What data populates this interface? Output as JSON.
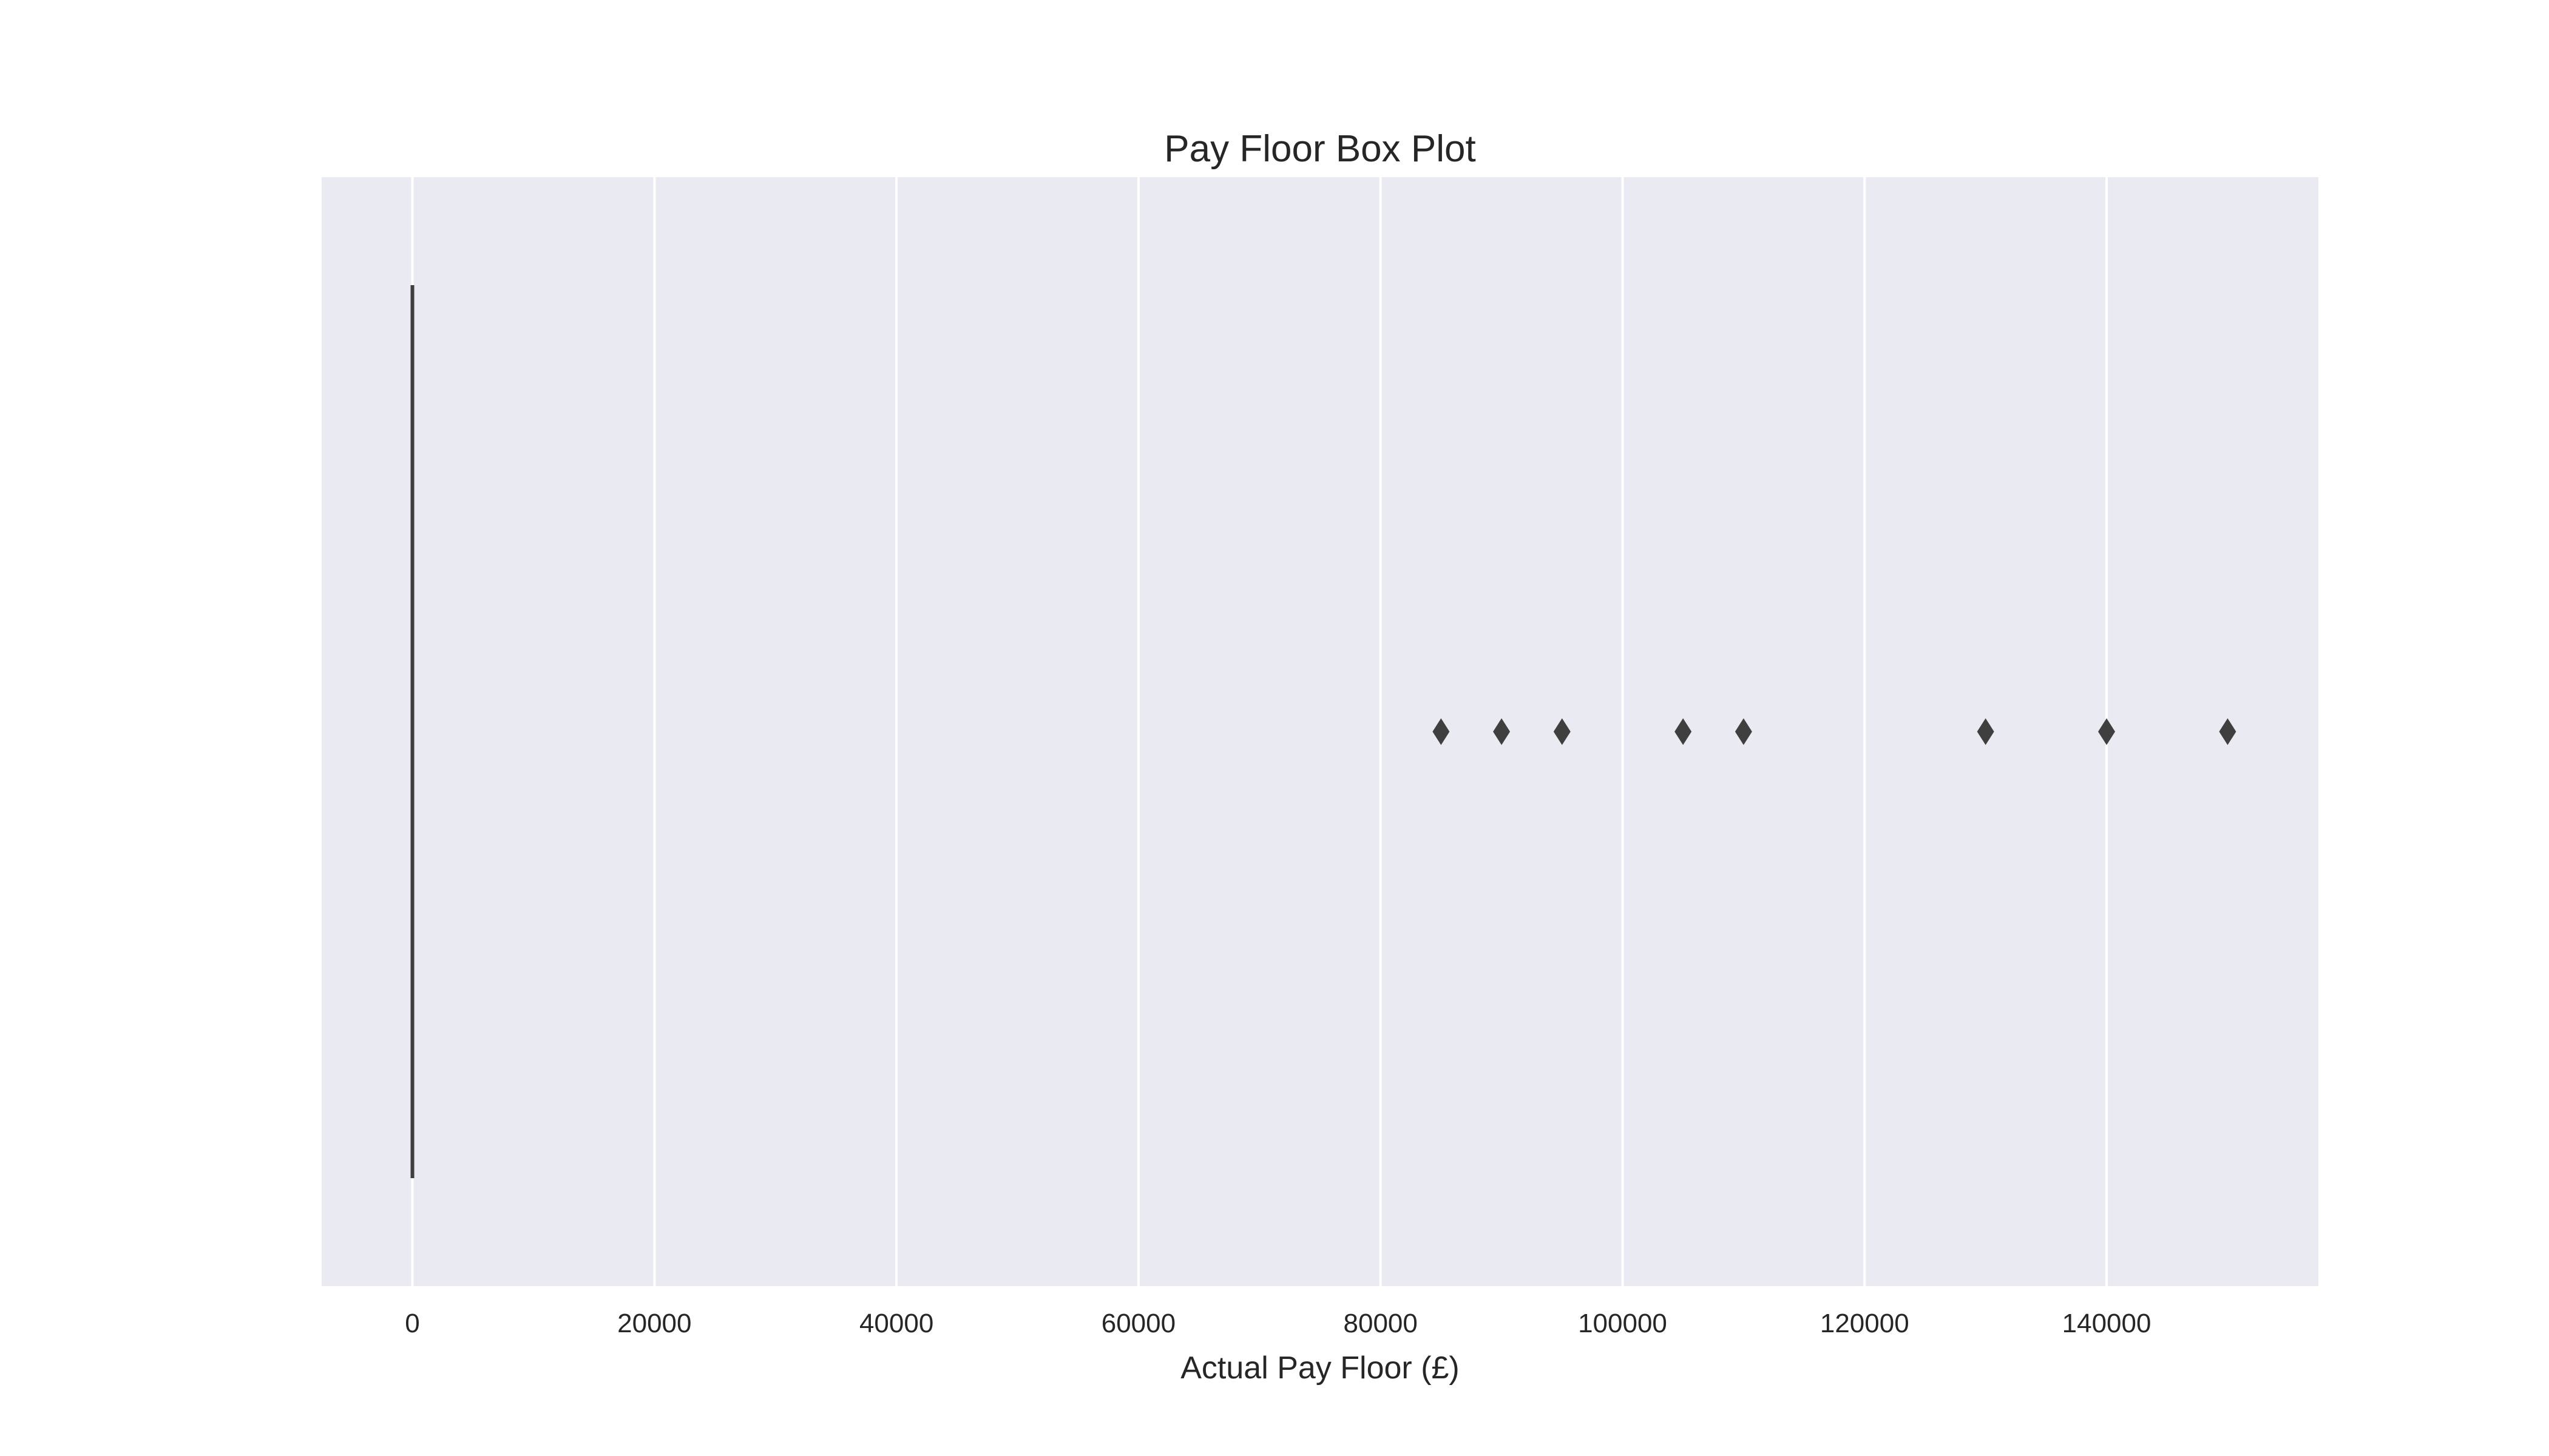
{
  "chart_data": {
    "type": "box",
    "orientation": "horizontal",
    "title": "Pay Floor Box Plot",
    "xlabel": "Actual Pay Floor (£)",
    "ylabel": "",
    "xlim": [
      -7500,
      157500
    ],
    "xticks": [
      0,
      20000,
      40000,
      60000,
      80000,
      100000,
      120000,
      140000
    ],
    "xtick_labels": [
      "0",
      "20000",
      "40000",
      "60000",
      "80000",
      "100000",
      "120000",
      "140000"
    ],
    "grid": true,
    "box": {
      "min": 0,
      "q1": 0,
      "median": 0,
      "q3": 0,
      "max": 0
    },
    "outliers": [
      85000,
      90000,
      95000,
      105000,
      110000,
      130000,
      140000,
      150000
    ],
    "colors": {
      "background": "#eaeaf2",
      "grid": "#ffffff",
      "box": "#3f3f3f",
      "outlier": "#3f3f3f",
      "text": "#262626"
    }
  }
}
